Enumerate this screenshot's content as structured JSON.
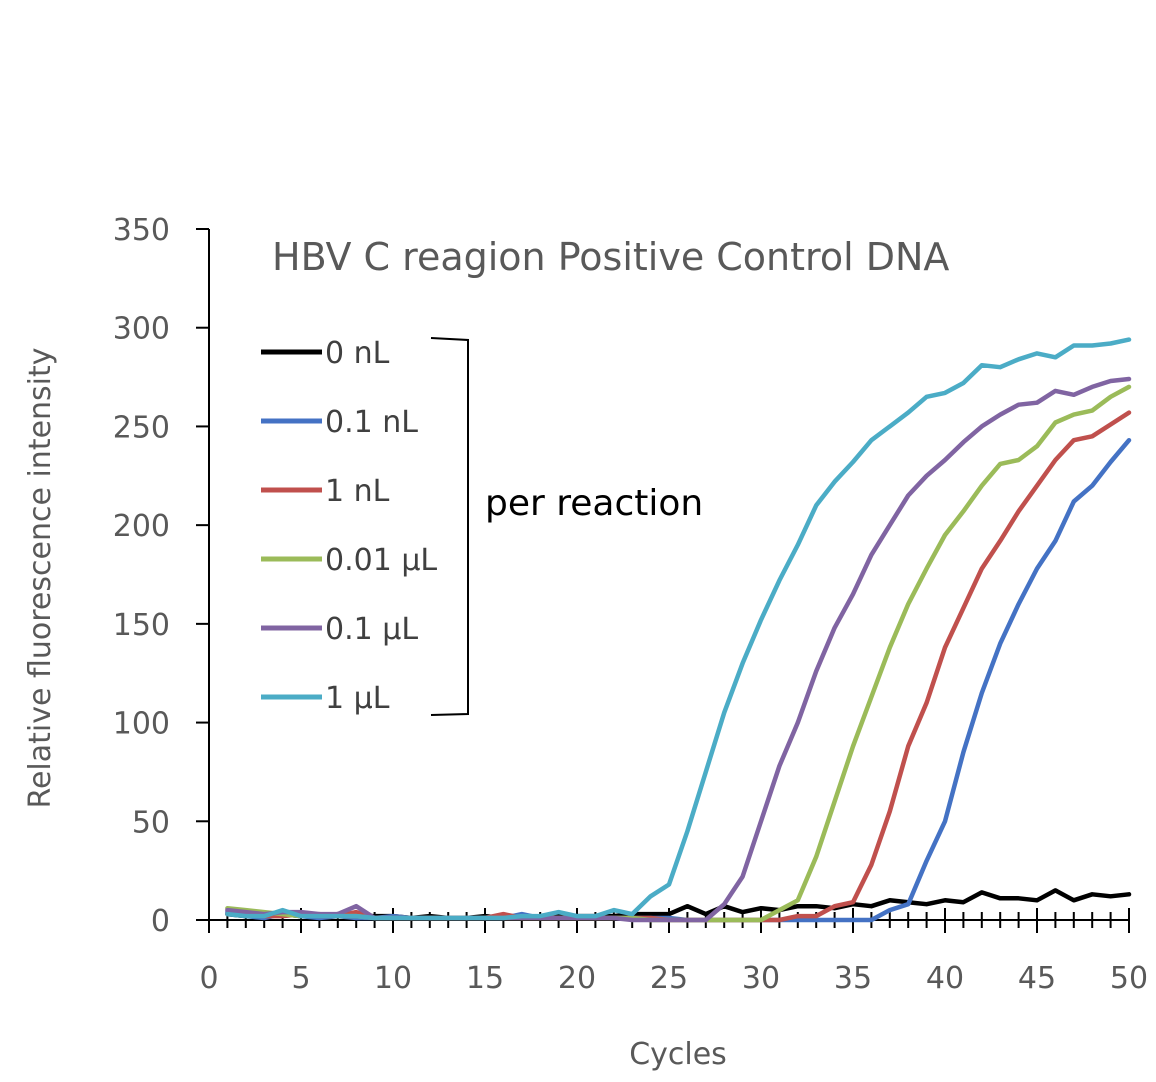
{
  "chart_data": {
    "type": "line",
    "title": "HBV C reagion Positive Control DNA",
    "xlabel": "Cycles",
    "ylabel": "Relative fluorescence intensity",
    "xlim": [
      0,
      50
    ],
    "ylim": [
      0,
      350
    ],
    "x_ticks": [
      0,
      5,
      10,
      15,
      20,
      25,
      30,
      35,
      40,
      45,
      50
    ],
    "y_ticks": [
      0,
      50,
      100,
      150,
      200,
      250,
      300,
      350
    ],
    "grid": false,
    "legend_position": "top-left",
    "annotation": "per reaction",
    "x": [
      1,
      2,
      3,
      4,
      5,
      6,
      7,
      8,
      9,
      10,
      11,
      12,
      13,
      14,
      15,
      16,
      17,
      18,
      19,
      20,
      21,
      22,
      23,
      24,
      25,
      26,
      27,
      28,
      29,
      30,
      31,
      32,
      33,
      34,
      35,
      36,
      37,
      38,
      39,
      40,
      41,
      42,
      43,
      44,
      45,
      46,
      47,
      48,
      49,
      50
    ],
    "series": [
      {
        "name": "0 nL",
        "color": "#000000",
        "values": [
          3,
          2,
          2,
          3,
          2,
          2,
          3,
          2,
          2,
          2,
          1,
          2,
          1,
          1,
          2,
          1,
          2,
          1,
          2,
          2,
          2,
          2,
          3,
          3,
          3,
          7,
          3,
          7,
          4,
          6,
          5,
          7,
          7,
          6,
          8,
          7,
          10,
          9,
          8,
          10,
          9,
          14,
          11,
          11,
          10,
          15,
          10,
          13,
          12,
          13
        ]
      },
      {
        "name": "0.1 nL",
        "color": "#4472C4",
        "values": [
          4,
          2,
          1,
          3,
          2,
          1,
          2,
          1,
          1,
          2,
          1,
          1,
          1,
          1,
          1,
          1,
          3,
          1,
          1,
          1,
          1,
          1,
          1,
          1,
          1,
          0,
          0,
          0,
          0,
          0,
          0,
          0,
          0,
          0,
          0,
          0,
          5,
          8,
          30,
          50,
          85,
          115,
          140,
          160,
          178,
          192,
          212,
          220,
          232,
          243
        ]
      },
      {
        "name": "1 nL",
        "color": "#C0504D",
        "values": [
          3,
          3,
          2,
          2,
          3,
          2,
          2,
          4,
          1,
          1,
          1,
          1,
          1,
          1,
          1,
          3,
          1,
          1,
          1,
          1,
          1,
          1,
          1,
          1,
          0,
          0,
          0,
          0,
          0,
          0,
          0,
          2,
          2,
          7,
          9,
          28,
          55,
          88,
          110,
          138,
          158,
          178,
          192,
          207,
          220,
          233,
          243,
          245,
          251,
          257
        ]
      },
      {
        "name": "0.01 μL",
        "color": "#9BBB59",
        "values": [
          6,
          5,
          4,
          3,
          2,
          3,
          2,
          2,
          1,
          1,
          1,
          1,
          1,
          1,
          1,
          1,
          1,
          1,
          1,
          1,
          1,
          1,
          1,
          0,
          0,
          0,
          0,
          0,
          0,
          0,
          5,
          10,
          32,
          60,
          88,
          113,
          138,
          160,
          178,
          195,
          207,
          220,
          231,
          233,
          240,
          252,
          256,
          258,
          265,
          270
        ]
      },
      {
        "name": "0.1 μL",
        "color": "#8064A2",
        "values": [
          5,
          4,
          3,
          4,
          4,
          3,
          3,
          7,
          1,
          1,
          1,
          1,
          1,
          1,
          1,
          1,
          1,
          1,
          1,
          1,
          1,
          1,
          0,
          0,
          0,
          0,
          0,
          8,
          22,
          50,
          78,
          100,
          126,
          148,
          165,
          185,
          200,
          215,
          225,
          233,
          242,
          250,
          256,
          261,
          262,
          268,
          266,
          270,
          273,
          274
        ]
      },
      {
        "name": "1 μL",
        "color": "#4BACC6",
        "values": [
          3,
          2,
          2,
          5,
          2,
          2,
          2,
          2,
          1,
          1,
          1,
          1,
          1,
          1,
          1,
          1,
          2,
          2,
          4,
          2,
          2,
          5,
          3,
          12,
          18,
          45,
          75,
          105,
          130,
          152,
          172,
          190,
          210,
          222,
          232,
          243,
          250,
          257,
          265,
          267,
          272,
          281,
          280,
          284,
          287,
          285,
          291,
          291,
          292,
          294
        ]
      }
    ]
  }
}
